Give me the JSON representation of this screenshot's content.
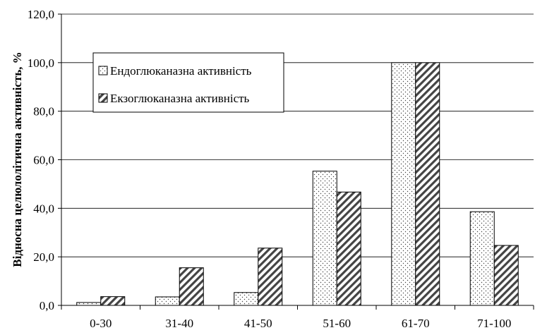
{
  "chart_data": {
    "type": "bar",
    "title": "",
    "xlabel": "",
    "ylabel": "Відносна целюлолітична активність, %",
    "categories": [
      "0-30",
      "31-40",
      "41-50",
      "51-60",
      "61-70",
      "71-100"
    ],
    "series": [
      {
        "name": "Ендоглюканазна активність",
        "values": [
          1.2,
          3.5,
          5.3,
          55.3,
          100.0,
          38.6
        ],
        "pattern": "dots"
      },
      {
        "name": "Екзоглюканазна активність",
        "values": [
          3.6,
          15.5,
          23.6,
          46.7,
          100.0,
          24.7
        ],
        "pattern": "diagonal-hatch"
      }
    ],
    "ylim": [
      0,
      120
    ],
    "yticks": [
      "0,0",
      "20,0",
      "40,0",
      "60,0",
      "80,0",
      "100,0",
      "120,0"
    ],
    "grid": true,
    "legend_position": "top-left inside"
  }
}
